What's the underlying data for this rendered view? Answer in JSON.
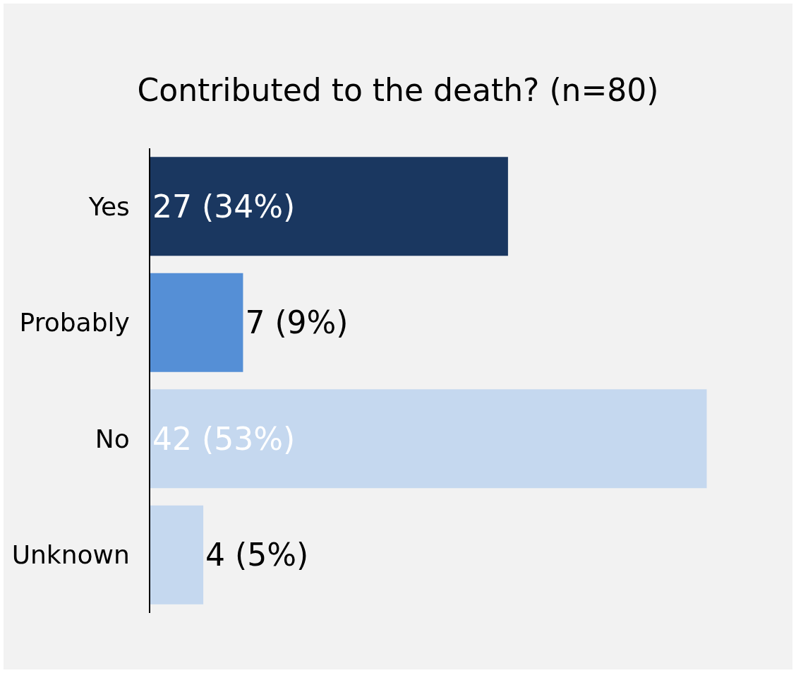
{
  "chart_data": {
    "type": "bar",
    "orientation": "horizontal",
    "title": "Contributed to the death? (n=80)",
    "categories": [
      "Yes",
      "Probably",
      "No",
      "Unknown"
    ],
    "values": [
      27,
      7,
      42,
      4
    ],
    "colors": [
      "#1a3760",
      "#558fd6",
      "#c5d8ef",
      "#c5d8ef"
    ],
    "value_labels": [
      "27 (34%)",
      "7 (9%)",
      "42 (53%)",
      "4 (5%)"
    ]
  }
}
